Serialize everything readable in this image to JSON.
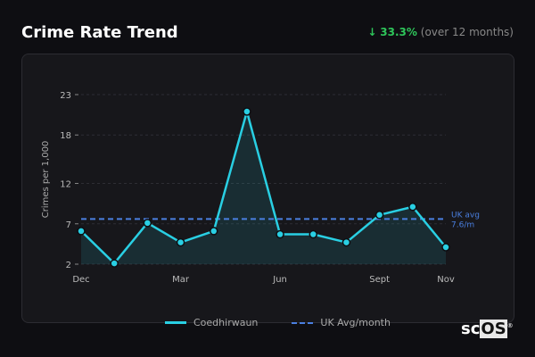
{
  "header": {
    "title": "Crime Rate Trend",
    "change_arrow": "↓",
    "change_pct": "33.3%",
    "change_period": "(over 12 months)"
  },
  "colors": {
    "line": "#29cfe3",
    "avg": "#4a7fe0",
    "positive": "#2ec55a"
  },
  "chart_data": {
    "type": "line",
    "title": "Crime Rate Trend",
    "ylabel": "Crimes per 1,000",
    "ylim": [
      2,
      23
    ],
    "yticks": [
      "2",
      "7",
      "12",
      "18",
      "23"
    ],
    "xticks": [
      {
        "index": 0,
        "label": "Dec"
      },
      {
        "index": 3,
        "label": "Mar"
      },
      {
        "index": 6,
        "label": "Jun"
      },
      {
        "index": 9,
        "label": "Sept"
      },
      {
        "index": 11,
        "label": "Nov"
      }
    ],
    "grid": true,
    "legend": "bottom",
    "series": [
      {
        "name": "Coedhirwaun",
        "values": [
          6.1,
          2.1,
          7.1,
          4.7,
          6.1,
          20.9,
          5.7,
          5.7,
          4.7,
          8.1,
          9.1,
          4.1
        ]
      }
    ],
    "reference": {
      "name": "UK Avg/month",
      "value": 7.6,
      "label_line1": "UK avg",
      "label_line2": "7.6/m"
    }
  },
  "logo": {
    "text_sc": "sc",
    "text_os": "OS",
    "mark": "®"
  }
}
